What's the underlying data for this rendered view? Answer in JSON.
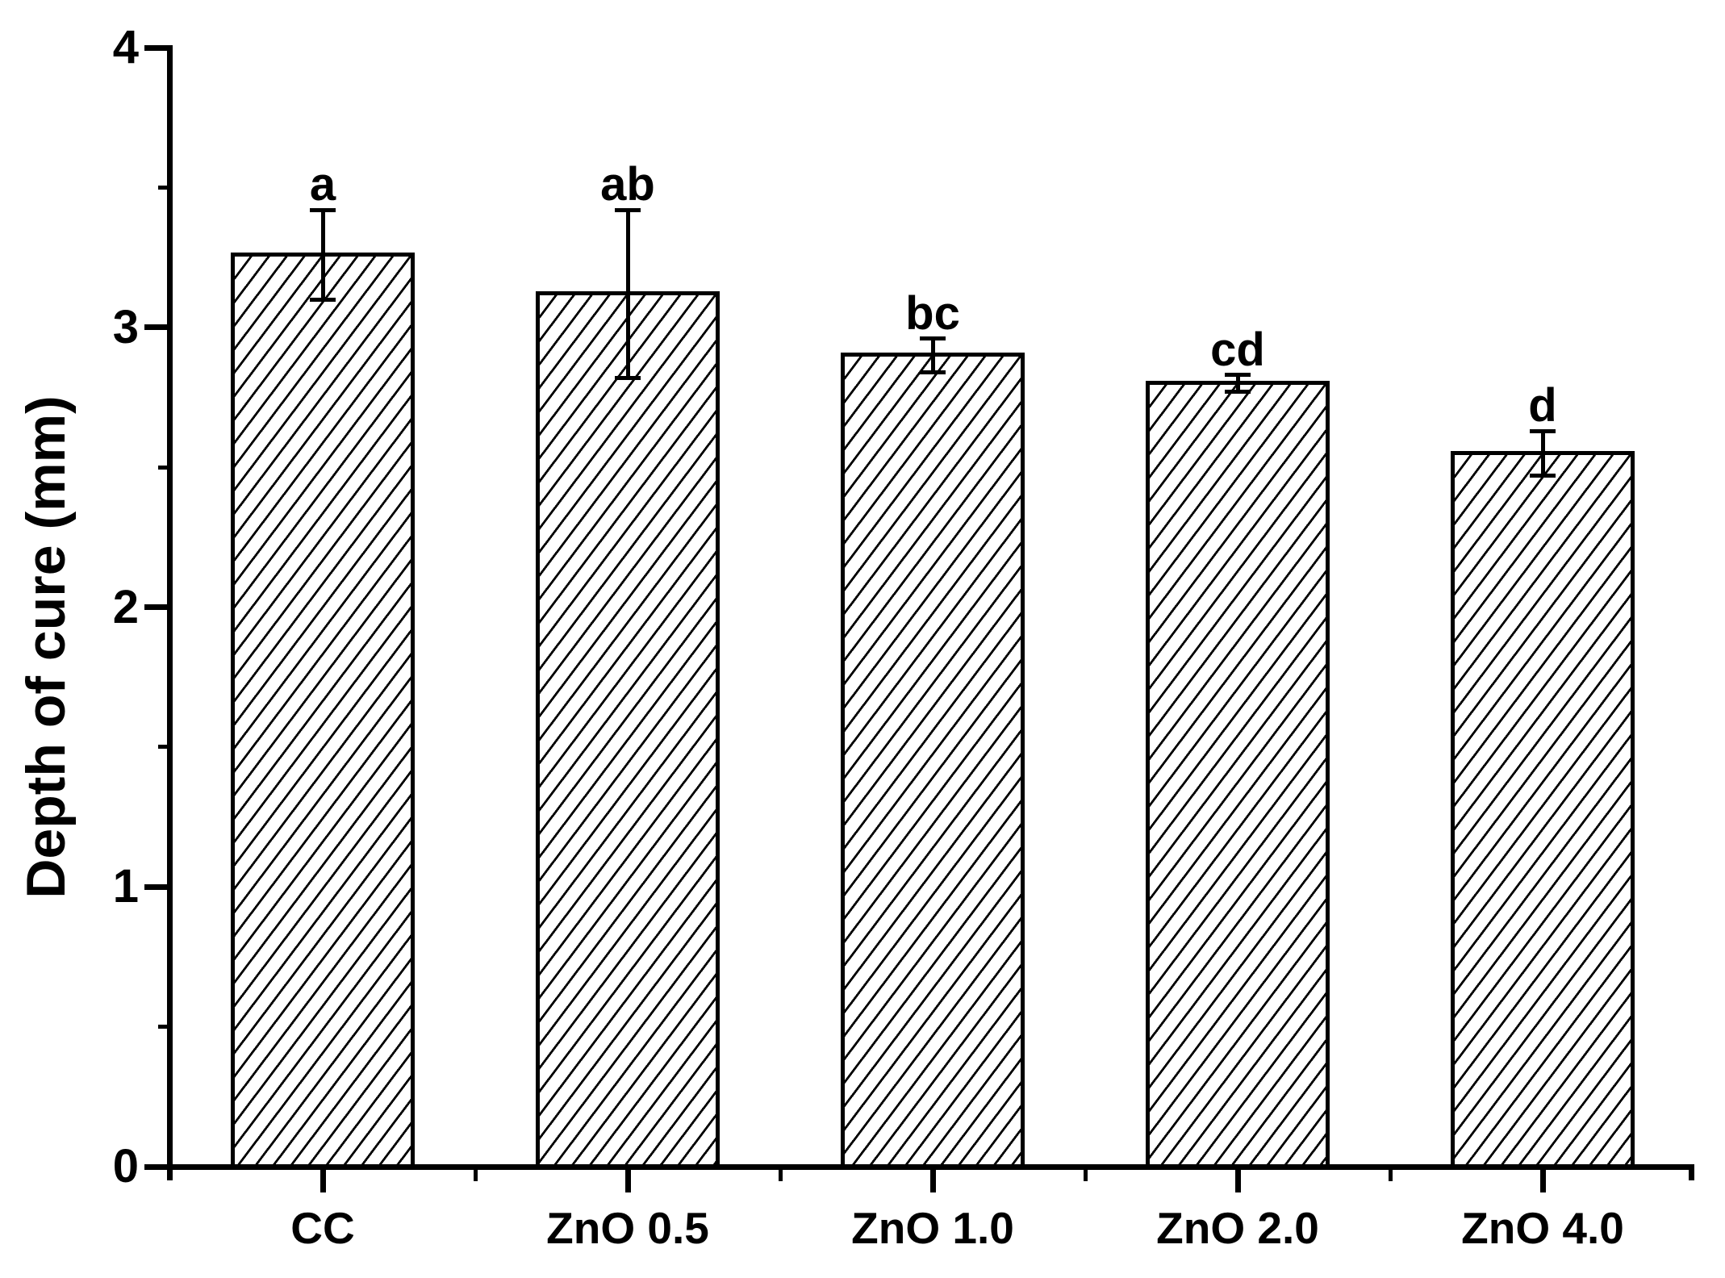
{
  "chart_data": {
    "type": "bar",
    "title": "",
    "ylabel": "Depth of cure (mm)",
    "xlabel": "",
    "ylim": [
      0,
      4
    ],
    "yticks": [
      {
        "value": 0,
        "label": "0"
      },
      {
        "value": 1,
        "label": "1"
      },
      {
        "value": 2,
        "label": "2"
      },
      {
        "value": 3,
        "label": "3"
      },
      {
        "value": 4,
        "label": "4"
      }
    ],
    "minor_yticks": [
      0.5,
      1.5,
      2.5,
      3.5
    ],
    "categories": [
      "CC",
      "ZnO 0.5",
      "ZnO 1.0",
      "ZnO 2.0",
      "ZnO 4.0"
    ],
    "values": [
      3.26,
      3.12,
      2.9,
      2.8,
      2.55
    ],
    "errors": [
      0.16,
      0.3,
      0.06,
      0.03,
      0.08
    ],
    "sig_letters": [
      "a",
      "ab",
      "bc",
      "cd",
      "d"
    ],
    "style": {
      "bar_fill": "white with black diagonal hatch",
      "bar_border_color": "#000000",
      "error_bar_color": "#000000",
      "axis_color": "#000000",
      "background_color": "#ffffff",
      "grid": false,
      "legend": false
    }
  }
}
